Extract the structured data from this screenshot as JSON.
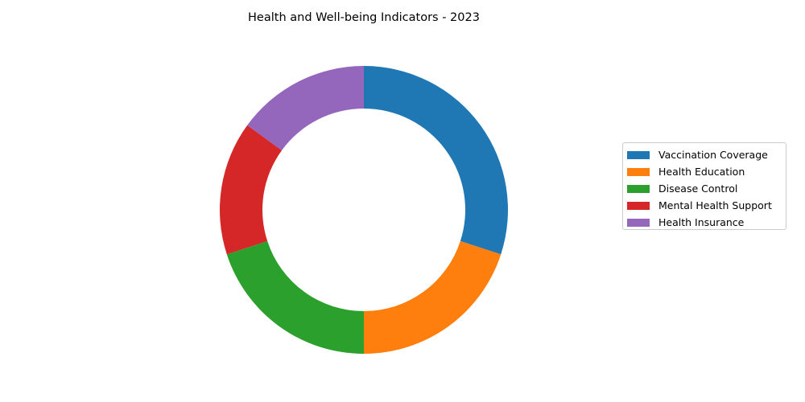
{
  "chart_data": {
    "type": "pie",
    "variant": "donut",
    "title": "Health and Well-being Indicators - 2023",
    "categories": [
      "Vaccination Coverage",
      "Health Education",
      "Disease Control",
      "Mental Health Support",
      "Health Insurance"
    ],
    "values": [
      30,
      20,
      20,
      15,
      15
    ],
    "colors": [
      "#1f77b4",
      "#ff7f0e",
      "#2ca02c",
      "#d62728",
      "#9467bd"
    ],
    "start_angle": "top",
    "direction": "clockwise",
    "legend": {
      "placement": "right"
    }
  }
}
